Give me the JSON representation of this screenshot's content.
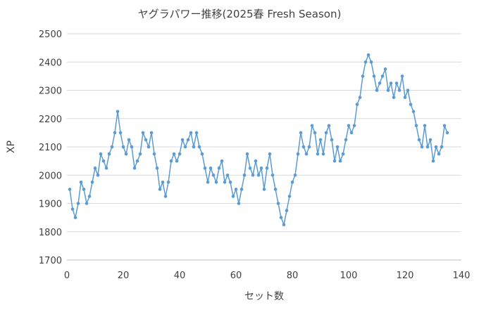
{
  "chart_data": {
    "type": "line",
    "title": "ヤグラパワー推移(2025春 Fresh Season)",
    "xlabel": "セット数",
    "ylabel": "XP",
    "xlim": [
      0,
      140
    ],
    "ylim": [
      1700,
      2500
    ],
    "x_ticks": [
      "0",
      "20",
      "40",
      "60",
      "80",
      "100",
      "120",
      "140"
    ],
    "y_ticks": [
      "1700",
      "1800",
      "1900",
      "2000",
      "2100",
      "2200",
      "2300",
      "2400",
      "2500"
    ],
    "grid": true,
    "legend": "none",
    "series": [
      {
        "color": "#5b9bd5",
        "marker": "circle",
        "x": [
          1,
          2,
          3,
          4,
          5,
          6,
          7,
          8,
          9,
          10,
          11,
          12,
          13,
          14,
          15,
          16,
          17,
          18,
          19,
          20,
          21,
          22,
          23,
          24,
          25,
          26,
          27,
          28,
          29,
          30,
          31,
          32,
          33,
          34,
          35,
          36,
          37,
          38,
          39,
          40,
          41,
          42,
          43,
          44,
          45,
          46,
          47,
          48,
          49,
          50,
          51,
          52,
          53,
          54,
          55,
          56,
          57,
          58,
          59,
          60,
          61,
          62,
          63,
          64,
          65,
          66,
          67,
          68,
          69,
          70,
          71,
          72,
          73,
          74,
          75,
          76,
          77,
          78,
          79,
          80,
          81,
          82,
          83,
          84,
          85,
          86,
          87,
          88,
          89,
          90,
          91,
          92,
          93,
          94,
          95,
          96,
          97,
          98,
          99,
          100,
          101,
          102,
          103,
          104,
          105,
          106,
          107,
          108,
          109,
          110,
          111,
          112,
          113,
          114,
          115,
          116,
          117,
          118,
          119,
          120,
          121,
          122,
          123,
          124,
          125,
          126,
          127,
          128,
          129,
          130,
          131,
          132,
          133,
          134,
          135
        ],
        "values": [
          1950,
          1880,
          1850,
          1900,
          1975,
          1950,
          1900,
          1925,
          1975,
          2025,
          2000,
          2075,
          2050,
          2025,
          2075,
          2100,
          2150,
          2225,
          2150,
          2100,
          2075,
          2125,
          2100,
          2025,
          2050,
          2075,
          2150,
          2125,
          2100,
          2150,
          2075,
          2025,
          1950,
          1975,
          1925,
          1975,
          2050,
          2075,
          2050,
          2075,
          2125,
          2100,
          2125,
          2150,
          2100,
          2150,
          2100,
          2075,
          2025,
          1975,
          2025,
          2000,
          1975,
          2025,
          2050,
          1975,
          2000,
          1975,
          1925,
          1950,
          1900,
          1950,
          2000,
          2075,
          2025,
          2000,
          2050,
          2000,
          2025,
          1950,
          2025,
          2075,
          2000,
          1950,
          1900,
          1850,
          1825,
          1875,
          1925,
          1975,
          2000,
          2075,
          2150,
          2100,
          2075,
          2100,
          2175,
          2150,
          2075,
          2125,
          2075,
          2150,
          2175,
          2125,
          2050,
          2100,
          2050,
          2075,
          2125,
          2175,
          2150,
          2175,
          2250,
          2275,
          2350,
          2400,
          2425,
          2400,
          2350,
          2300,
          2325,
          2350,
          2375,
          2300,
          2325,
          2275,
          2325,
          2300,
          2350,
          2275,
          2300,
          2250,
          2225,
          2175,
          2125,
          2100,
          2175,
          2100,
          2125,
          2050,
          2100,
          2075,
          2100,
          2175,
          2150
        ]
      }
    ]
  }
}
